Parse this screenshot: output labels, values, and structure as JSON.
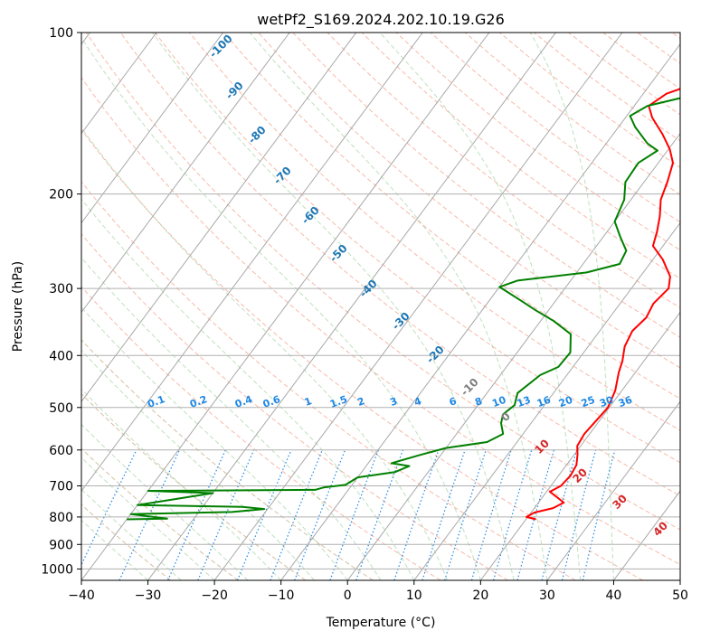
{
  "chart_data": {
    "type": "line",
    "title": "wetPf2_S169.2024.202.10.19.G26",
    "xlabel": "Temperature (°C)",
    "ylabel": "Pressure (hPa)",
    "xlim": [
      -40,
      50
    ],
    "ylim": [
      1050,
      100
    ],
    "y_scale": "log",
    "x_ticks": [
      -40,
      -30,
      -20,
      -10,
      0,
      10,
      20,
      30,
      40,
      50
    ],
    "y_ticks": [
      100,
      200,
      300,
      400,
      500,
      600,
      700,
      800,
      900,
      1000
    ],
    "grid": true,
    "series": [
      {
        "color": "#ff0000",
        "points": [
          [
            21.5,
            808
          ],
          [
            19.8,
            800
          ],
          [
            20.5,
            785
          ],
          [
            22.8,
            770
          ],
          [
            23.8,
            752
          ],
          [
            22.2,
            735
          ],
          [
            20.5,
            718
          ],
          [
            21.5,
            700
          ],
          [
            21.8,
            670
          ],
          [
            21.5,
            640
          ],
          [
            20.5,
            612
          ],
          [
            19.5,
            590
          ],
          [
            19.2,
            560
          ],
          [
            19.5,
            530
          ],
          [
            19.8,
            500
          ],
          [
            19.0,
            465
          ],
          [
            17.5,
            430
          ],
          [
            16.8,
            410
          ],
          [
            15.5,
            385
          ],
          [
            14.9,
            360
          ],
          [
            15.5,
            340
          ],
          [
            15.0,
            320
          ],
          [
            15.6,
            300
          ],
          [
            14.5,
            285
          ],
          [
            11.5,
            265
          ],
          [
            8.5,
            250
          ],
          [
            7.5,
            235
          ],
          [
            6.2,
            220
          ],
          [
            4.5,
            205
          ],
          [
            3.5,
            190
          ],
          [
            2.2,
            175
          ],
          [
            0.2,
            165
          ],
          [
            -2.5,
            155
          ],
          [
            -6.0,
            144
          ],
          [
            -7.8,
            137
          ],
          [
            -6.5,
            130
          ],
          [
            -3.0,
            124
          ],
          [
            0.5,
            118
          ],
          [
            1.8,
            112
          ],
          [
            1.3,
            106
          ],
          [
            0.8,
            100
          ]
        ]
      },
      {
        "color": "#008000",
        "points": [
          [
            -40.0,
            808
          ],
          [
            -34.0,
            806
          ],
          [
            -40.0,
            790
          ],
          [
            -25.0,
            783
          ],
          [
            -20.5,
            773
          ],
          [
            -24.0,
            766
          ],
          [
            -40.0,
            760
          ],
          [
            -30.0,
            722
          ],
          [
            -40.0,
            715
          ],
          [
            -15.0,
            712
          ],
          [
            -14.0,
            705
          ],
          [
            -11.0,
            697
          ],
          [
            -10.0,
            675
          ],
          [
            -5.0,
            660
          ],
          [
            -3.5,
            643
          ],
          [
            -6.5,
            635
          ],
          [
            -3.0,
            612
          ],
          [
            0.0,
            595
          ],
          [
            5.5,
            580
          ],
          [
            7.0,
            560
          ],
          [
            5.5,
            535
          ],
          [
            4.8,
            515
          ],
          [
            5.5,
            495
          ],
          [
            4.6,
            470
          ],
          [
            6.0,
            435
          ],
          [
            7.8,
            420
          ],
          [
            8.0,
            395
          ],
          [
            6.0,
            365
          ],
          [
            2.0,
            345
          ],
          [
            -1.8,
            330
          ],
          [
            -5.0,
            317
          ],
          [
            -10.0,
            298
          ],
          [
            -8.0,
            290
          ],
          [
            1.5,
            280
          ],
          [
            5.5,
            270
          ],
          [
            5.0,
            255
          ],
          [
            2.5,
            240
          ],
          [
            0.0,
            225
          ],
          [
            -1.0,
            205
          ],
          [
            -2.8,
            190
          ],
          [
            -3.0,
            175
          ],
          [
            -1.5,
            166
          ],
          [
            -3.8,
            161
          ],
          [
            -7.5,
            150
          ],
          [
            -9.5,
            143
          ],
          [
            -8.0,
            137
          ],
          [
            -3.5,
            132
          ],
          [
            0.5,
            126
          ],
          [
            1.2,
            119
          ],
          [
            1.0,
            112
          ],
          [
            0.5,
            106
          ],
          [
            0.0,
            100
          ]
        ]
      }
    ],
    "annotations": {
      "dry_adiabats": [
        "-100",
        "-90",
        "-80",
        "-70",
        "-60",
        "-50",
        "-40",
        "-30",
        "-20",
        "-10",
        "0",
        "10",
        "20",
        "30",
        "40"
      ],
      "mixing_ratios": [
        "0.1",
        "0.2",
        "0.4",
        "0.6",
        "1",
        "1.5",
        "2",
        "3",
        "4",
        "6",
        "8",
        "10",
        "13",
        "16",
        "20",
        "25",
        "30",
        "36"
      ]
    }
  }
}
